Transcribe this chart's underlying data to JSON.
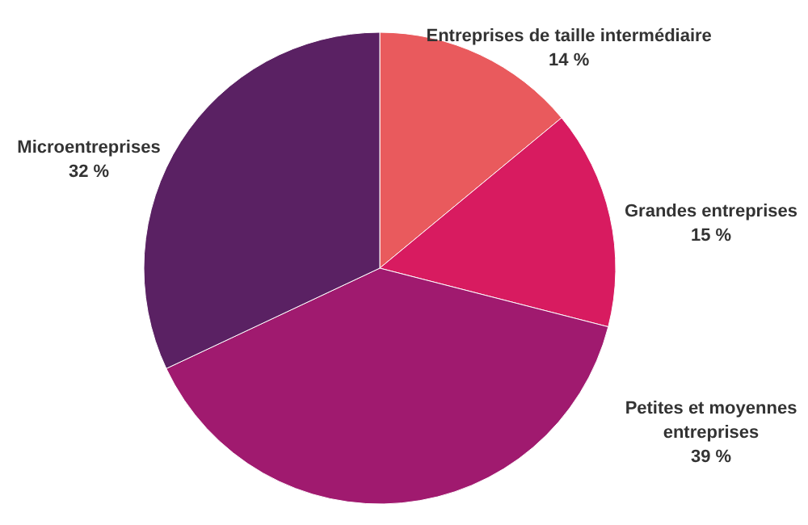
{
  "chart_data": {
    "type": "pie",
    "categories": [
      "Entreprises de taille intermédiaire",
      "Grandes entreprises",
      "Petites et moyennes entreprises",
      "Microentreprises"
    ],
    "values": [
      14,
      15,
      39,
      32
    ],
    "value_labels": [
      "14 %",
      "15 %",
      "39 %",
      "32 %"
    ],
    "colors": [
      "#e95a5d",
      "#d81b60",
      "#a01a6f",
      "#5a2163"
    ]
  }
}
